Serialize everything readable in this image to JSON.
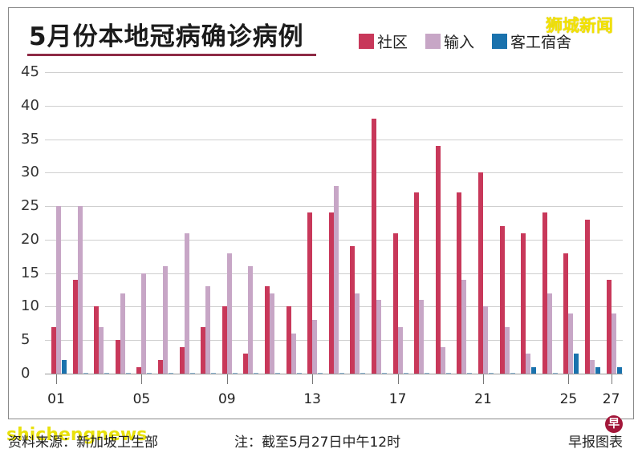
{
  "header": {
    "title": "5月份本地冠病确诊病例",
    "watermark": "狮城新闻"
  },
  "legend": [
    {
      "label": "社区",
      "color": "#c8385a"
    },
    {
      "label": "输入",
      "color": "#c7a6c6"
    },
    {
      "label": "客工宿舍",
      "color": "#1a72ad"
    }
  ],
  "footer": {
    "source": "资料来源：新加坡卫生部",
    "note": "注：截至5月27日中午12时",
    "credit": "早报图表",
    "watermark": "shichengnews",
    "logo_glyph": "早"
  },
  "chart_data": {
    "type": "bar",
    "title": "5月份本地冠病确诊病例",
    "xlabel": "",
    "ylabel": "",
    "ylim": [
      0,
      45
    ],
    "yticks": [
      0,
      5,
      10,
      15,
      20,
      25,
      30,
      35,
      40,
      45
    ],
    "grid": true,
    "legend_position": "top-right",
    "categories": [
      "01",
      "02",
      "03",
      "04",
      "05",
      "06",
      "07",
      "08",
      "09",
      "10",
      "11",
      "12",
      "13",
      "14",
      "15",
      "16",
      "17",
      "18",
      "19",
      "20",
      "21",
      "22",
      "23",
      "24",
      "25",
      "26",
      "27"
    ],
    "xtick_labels": [
      "01",
      "05",
      "09",
      "13",
      "17",
      "21",
      "25",
      "27"
    ],
    "series": [
      {
        "name": "社区",
        "color": "#c8385a",
        "values": [
          7,
          14,
          10,
          5,
          1,
          2,
          4,
          7,
          10,
          3,
          13,
          10,
          24,
          24,
          19,
          38,
          21,
          27,
          34,
          27,
          30,
          22,
          21,
          24,
          18,
          23,
          14
        ]
      },
      {
        "name": "输入",
        "color": "#c7a6c6",
        "values": [
          25,
          25,
          7,
          12,
          15,
          16,
          21,
          13,
          18,
          16,
          12,
          6,
          8,
          28,
          12,
          11,
          7,
          11,
          4,
          14,
          10,
          7,
          3,
          12,
          9,
          2,
          9
        ]
      },
      {
        "name": "客工宿舍",
        "color": "#1a72ad",
        "values": [
          2,
          0,
          0,
          0,
          0,
          0,
          0,
          0,
          0,
          0,
          0,
          0,
          0,
          0,
          0,
          0,
          0,
          0,
          0,
          0,
          0,
          0,
          1,
          0,
          3,
          1,
          1
        ]
      }
    ]
  }
}
